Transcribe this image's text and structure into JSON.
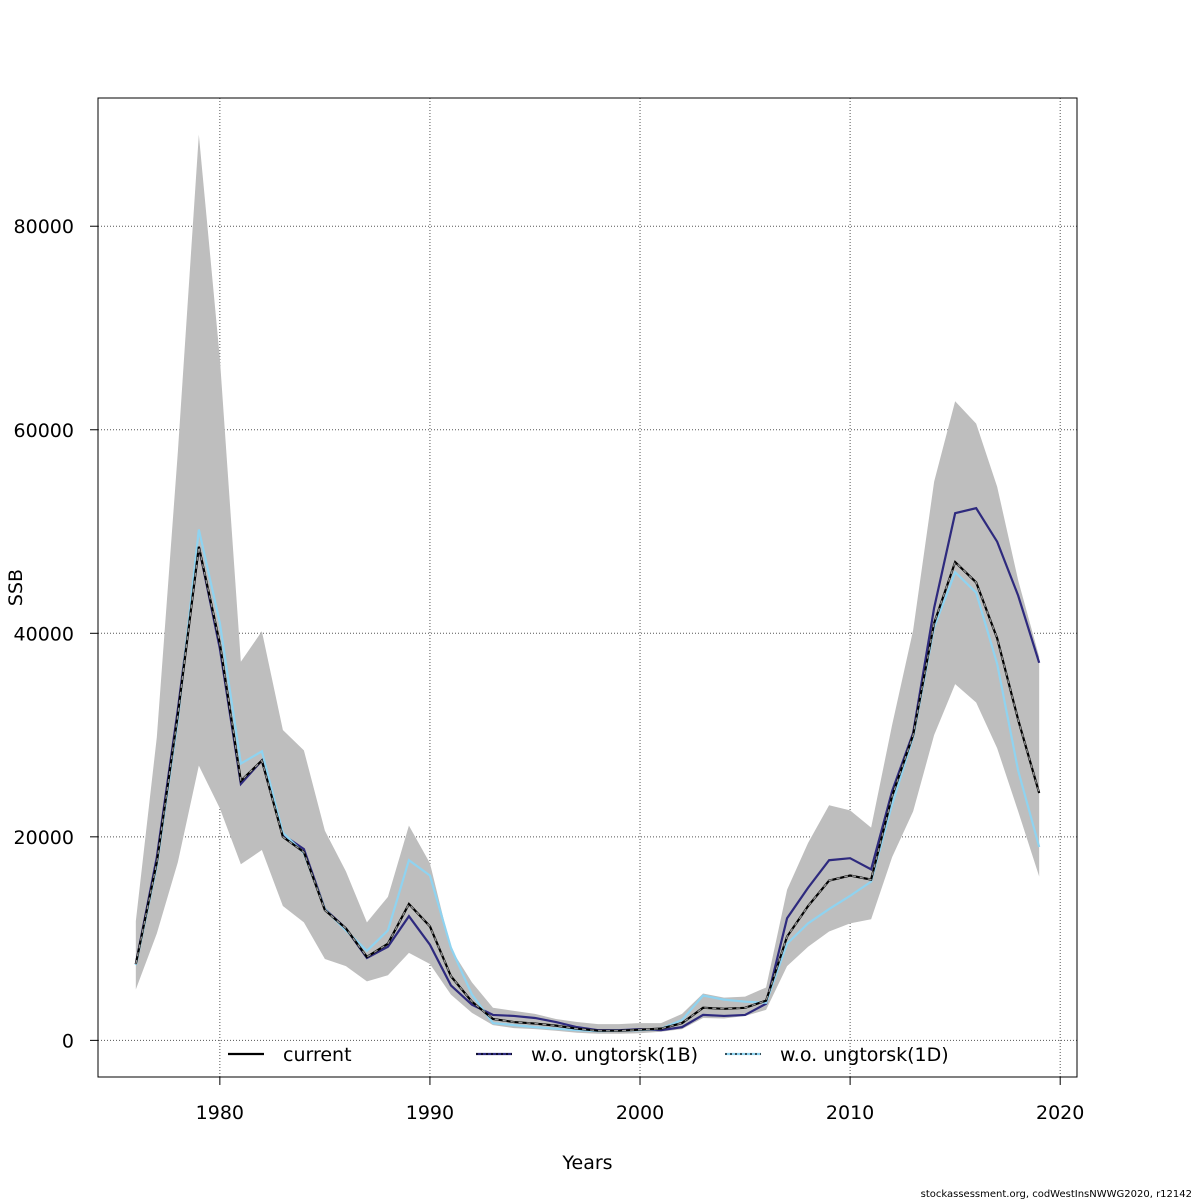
{
  "chart_data": {
    "type": "line",
    "title": "",
    "xlabel": "Years",
    "ylabel": "SSB",
    "xlim": [
      1974.2,
      2020.8
    ],
    "ylim": [
      -3600,
      92600
    ],
    "xticks": [
      1980,
      1990,
      2000,
      2010,
      2020
    ],
    "yticks": [
      0,
      20000,
      40000,
      60000,
      80000
    ],
    "xtick_labels": [
      "1980",
      "1990",
      "2000",
      "2010",
      "2020"
    ],
    "ytick_labels": [
      "0",
      "20000",
      "40000",
      "60000",
      "80000"
    ],
    "grid": true,
    "legend_position": "bottom",
    "x": [
      1976,
      1977,
      1978,
      1979,
      1980,
      1981,
      1982,
      1983,
      1984,
      1985,
      1986,
      1987,
      1988,
      1989,
      1990,
      1991,
      1992,
      1993,
      1994,
      1995,
      1996,
      1997,
      1998,
      1999,
      2000,
      2001,
      2002,
      2003,
      2004,
      2005,
      2006,
      2007,
      2008,
      2009,
      2010,
      2011,
      2012,
      2013,
      2014,
      2015,
      2016,
      2017,
      2018,
      2019
    ],
    "band": {
      "lower": [
        5000,
        10500,
        17500,
        27000,
        22800,
        17300,
        18700,
        13200,
        11600,
        8000,
        7300,
        5800,
        6400,
        8600,
        7500,
        4500,
        2700,
        1500,
        1200,
        1100,
        950,
        750,
        650,
        650,
        700,
        850,
        1100,
        2200,
        2150,
        2400,
        3000,
        7300,
        9200,
        10700,
        11500,
        11900,
        18000,
        22500,
        30000,
        35000,
        33200,
        28700,
        22500,
        16100
      ],
      "upper": [
        11700,
        29800,
        57800,
        89000,
        67000,
        37200,
        40200,
        30500,
        28500,
        20600,
        16600,
        11600,
        14100,
        21100,
        17400,
        9000,
        5700,
        3200,
        2900,
        2600,
        2100,
        1800,
        1600,
        1600,
        1700,
        1700,
        2600,
        4600,
        4200,
        4300,
        5200,
        14800,
        19400,
        23100,
        22600,
        20900,
        31000,
        40300,
        54900,
        62800,
        60600,
        54400,
        45200,
        37700
      ]
    },
    "series": [
      {
        "name": "current",
        "color": "#000000",
        "dash": "6,4",
        "values": [
          7500,
          17500,
          32000,
          48500,
          39000,
          25500,
          27500,
          20000,
          18500,
          12800,
          11000,
          8200,
          9500,
          13400,
          11200,
          6300,
          3800,
          2100,
          1800,
          1650,
          1450,
          1150,
          950,
          950,
          1050,
          1150,
          1700,
          3200,
          3100,
          3200,
          3900,
          10200,
          13200,
          15700,
          16200,
          15800,
          24000,
          30000,
          41000,
          47000,
          45000,
          39500,
          31500,
          24300
        ]
      },
      {
        "name": "w.o. ungtorsk(1B)",
        "color": "#2e2a7e",
        "dash": "",
        "values": [
          7500,
          18000,
          32500,
          48500,
          38500,
          25200,
          27500,
          20200,
          18800,
          12900,
          11000,
          8100,
          9200,
          12200,
          9400,
          5400,
          3500,
          2500,
          2400,
          2200,
          1800,
          1300,
          1000,
          1000,
          1100,
          1000,
          1300,
          2500,
          2400,
          2500,
          3600,
          12000,
          15000,
          17700,
          17900,
          16800,
          24500,
          30200,
          42500,
          51800,
          52300,
          49000,
          43700,
          37100
        ]
      },
      {
        "name": "w.o. ungtorsk(1D)",
        "color": "#8fd3f0",
        "dash": "",
        "values": [
          7400,
          17200,
          31500,
          50200,
          41000,
          27200,
          28400,
          20400,
          18400,
          12900,
          10800,
          8800,
          10800,
          17700,
          16200,
          9100,
          4500,
          1700,
          1500,
          1300,
          1150,
          1000,
          900,
          950,
          1000,
          1150,
          2000,
          4400,
          4000,
          3800,
          3700,
          9500,
          11500,
          12900,
          14200,
          15600,
          23200,
          29800,
          40600,
          46000,
          44000,
          37000,
          26500,
          19000
        ]
      }
    ]
  },
  "footer_text": "stockassessment.org, codWestInsNWWG2020, r12142"
}
